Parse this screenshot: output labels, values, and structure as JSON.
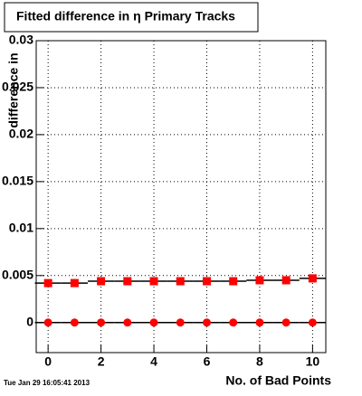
{
  "chart_data": {
    "type": "scatter",
    "title": "Fitted difference in  η Primary Tracks",
    "y_label": "difference in",
    "x_label": "No. of Bad Points",
    "timestamp": "Tue Jan 29 16:05:41 2013",
    "x": [
      0,
      1,
      2,
      3,
      4,
      5,
      6,
      7,
      8,
      9,
      10
    ],
    "series": [
      {
        "color": "#ff0000",
        "marker": "square",
        "values": [
          0.0042,
          0.0042,
          0.0044,
          0.0044,
          0.0044,
          0.0044,
          0.0044,
          0.0044,
          0.0045,
          0.0045,
          0.0047
        ]
      },
      {
        "color": "#ff0000",
        "marker": "circle",
        "values": [
          0,
          0,
          0,
          0,
          0,
          0,
          0,
          0,
          0,
          0,
          0
        ]
      }
    ],
    "xlim": [
      -0.45,
      10.5
    ],
    "xticks": [
      0,
      2,
      4,
      6,
      8,
      10
    ],
    "ylim": [
      -0.0032,
      0.03
    ],
    "yticks": [
      0,
      0.005,
      0.01,
      0.015,
      0.02,
      0.025,
      0.03
    ],
    "grid": true
  }
}
